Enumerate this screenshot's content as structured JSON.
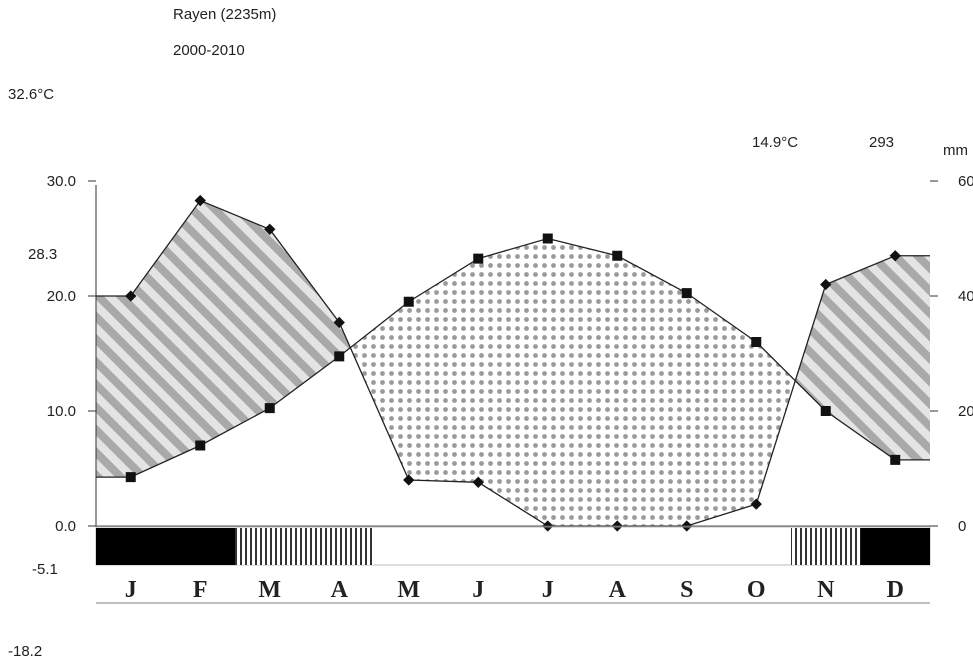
{
  "header": {
    "station": "Rayen (2235m)",
    "period": "2000-2010",
    "abs_max_temp": "32.6°C",
    "mean_temp": "14.9°C",
    "annual_precip": "293",
    "precip_unit": "mm",
    "mean_max_warmest": "28.3",
    "mean_min_coldest": "-5.1",
    "abs_min_temp": "-18.2"
  },
  "chart_data": {
    "type": "line",
    "categories": [
      "J",
      "F",
      "M",
      "A",
      "M",
      "J",
      "J",
      "A",
      "S",
      "O",
      "N",
      "D"
    ],
    "series": [
      {
        "values": [
          20.0,
          28.3,
          25.8,
          17.7,
          4.0,
          3.8,
          0.0,
          0.0,
          0.0,
          1.9,
          21.0,
          23.5
        ]
      },
      {
        "values": [
          8.5,
          14.0,
          20.5,
          29.5,
          39.0,
          46.5,
          50.0,
          47.0,
          40.5,
          32.0,
          20.0,
          11.5
        ]
      }
    ],
    "y_left": {
      "ticks": [
        "30.0",
        "20.0",
        "10.0",
        "0.0"
      ],
      "ylim": [
        0,
        30
      ]
    },
    "y_right": {
      "ticks": [
        "60",
        "40",
        "20",
        "0"
      ],
      "ylim": [
        0,
        60
      ]
    },
    "bands": [
      {
        "start_month": 0,
        "end_month": 2,
        "style": "solid"
      },
      {
        "start_month": 2,
        "end_month": 4,
        "style": "hatched"
      },
      {
        "start_month": 10,
        "end_month": 11,
        "style": "hatched"
      },
      {
        "start_month": 11,
        "end_month": 12,
        "style": "solid"
      }
    ]
  }
}
